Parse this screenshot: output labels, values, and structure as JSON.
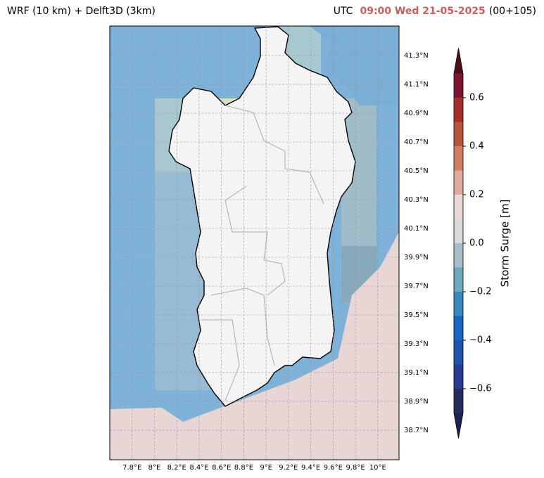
{
  "header": {
    "title": "WRF (10 km) + Delft3D (3km)",
    "zone": "UTC",
    "time": "09:00 Wed 21-05-2025",
    "run": "(00+105)"
  },
  "map": {
    "xlim": [
      7.6,
      10.19
    ],
    "ylim": [
      38.495,
      41.505
    ],
    "xticks": [
      {
        "value": 7.8,
        "label": "7.8°E"
      },
      {
        "value": 8,
        "label": "8°E"
      },
      {
        "value": 8.2,
        "label": "8.2°E"
      },
      {
        "value": 8.4,
        "label": "8.4°E"
      },
      {
        "value": 8.6,
        "label": "8.6°E"
      },
      {
        "value": 8.8,
        "label": "8.8°E"
      },
      {
        "value": 9,
        "label": "9°E"
      },
      {
        "value": 9.2,
        "label": "9.2°E"
      },
      {
        "value": 9.4,
        "label": "9.4°E"
      },
      {
        "value": 9.6,
        "label": "9.6°E"
      },
      {
        "value": 9.8,
        "label": "9.8°E"
      },
      {
        "value": 10,
        "label": "10°E"
      }
    ],
    "yticks": [
      {
        "value": 38.7,
        "label": "38.7°N"
      },
      {
        "value": 38.9,
        "label": "38.9°N"
      },
      {
        "value": 39.1,
        "label": "39.1°N"
      },
      {
        "value": 39.3,
        "label": "39.3°N"
      },
      {
        "value": 39.5,
        "label": "39.5°N"
      },
      {
        "value": 39.7,
        "label": "39.7°N"
      },
      {
        "value": 39.9,
        "label": "39.9°N"
      },
      {
        "value": 40.1,
        "label": "40.1°N"
      },
      {
        "value": 40.3,
        "label": "40.3°N"
      },
      {
        "value": 40.5,
        "label": "40.5°N"
      },
      {
        "value": 40.7,
        "label": "40.7°N"
      },
      {
        "value": 40.9,
        "label": "40.9°N"
      },
      {
        "value": 41.1,
        "label": "41.1°N"
      },
      {
        "value": 41.3,
        "label": "41.3°N"
      }
    ],
    "grid": true
  },
  "colorbar": {
    "label": "Storm Surge [m]",
    "levels": [
      -0.7,
      -0.6,
      -0.5,
      -0.4,
      -0.3,
      -0.2,
      -0.1,
      0,
      0.1,
      0.2,
      0.3,
      0.4,
      0.5,
      0.6,
      0.7
    ],
    "colors": [
      "#262d5e",
      "#2c3b92",
      "#1f55ad",
      "#1468c2",
      "#3a88ba",
      "#6fa7bf",
      "#a9bcc9",
      "#d9d9d9",
      "#ead7d3",
      "#ddab9b",
      "#cf7f64",
      "#b9553a",
      "#a32e2a",
      "#7c1530"
    ],
    "under_color": "#1e2450",
    "over_color": "#4a1018",
    "ticks": [
      {
        "value": -0.6,
        "label": "−0.6"
      },
      {
        "value": -0.4,
        "label": "−0.4"
      },
      {
        "value": -0.2,
        "label": "−0.2"
      },
      {
        "value": 0,
        "label": "0.0"
      },
      0.2,
      0.4,
      0.6
    ]
  }
}
